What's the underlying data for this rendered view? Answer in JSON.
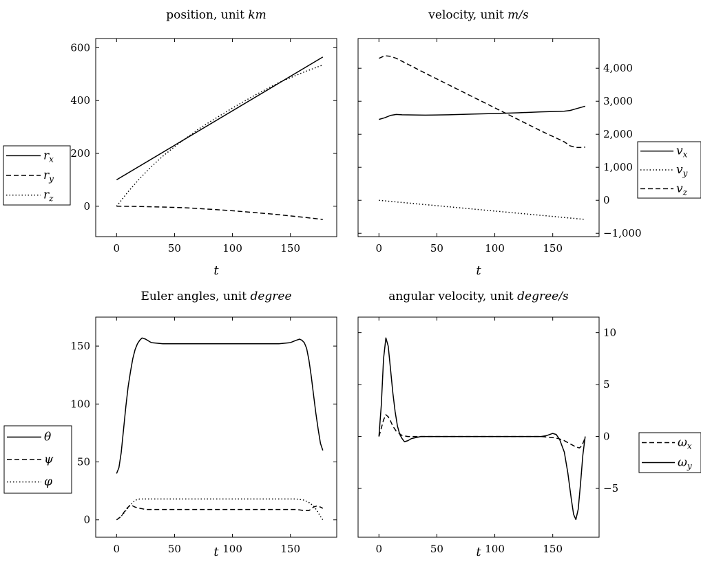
{
  "figure": {
    "xlabel": "t",
    "x_tick_labels": [
      "0",
      "50",
      "100",
      "150"
    ]
  },
  "chart_data": [
    {
      "type": "line",
      "title": "position, unit km",
      "title_parts": {
        "text": "position, unit ",
        "unit": "km"
      },
      "xlabel": "t",
      "xlim": [
        -18,
        190
      ],
      "ylim": [
        -115,
        635
      ],
      "x_ticks": [
        0,
        50,
        100,
        150
      ],
      "y_ticks": [
        0,
        200,
        400,
        600
      ],
      "y_tick_labels": [
        "0",
        "200",
        "400",
        "600"
      ],
      "y_axis_side": "left",
      "legend_placement": "left, outside",
      "series": [
        {
          "name": "r_x",
          "label_main": "r",
          "label_sub": "x",
          "style": "solid",
          "x": [
            0,
            178
          ],
          "y": [
            100,
            565
          ]
        },
        {
          "name": "r_y",
          "label_main": "r",
          "label_sub": "y",
          "style": "dashed",
          "x": [
            0,
            20,
            40,
            60,
            80,
            100,
            120,
            140,
            160,
            178
          ],
          "y": [
            0,
            -1,
            -3,
            -6,
            -11,
            -17,
            -24,
            -32,
            -41,
            -50
          ]
        },
        {
          "name": "r_z",
          "label_main": "r",
          "label_sub": "z",
          "style": "dotted",
          "x": [
            0,
            10,
            20,
            30,
            40,
            50,
            60,
            70,
            80,
            100,
            120,
            140,
            160,
            178
          ],
          "y": [
            0,
            55,
            105,
            150,
            190,
            225,
            258,
            290,
            318,
            372,
            422,
            468,
            505,
            535
          ]
        }
      ]
    },
    {
      "type": "line",
      "title": "velocity, unit m/s",
      "title_parts": {
        "text": "velocity, unit ",
        "unit": "m/s"
      },
      "xlabel": "t",
      "xlim": [
        -18,
        190
      ],
      "ylim": [
        -1100,
        4900
      ],
      "x_ticks": [
        0,
        50,
        100,
        150
      ],
      "y_ticks": [
        -1000,
        0,
        1000,
        2000,
        3000,
        4000
      ],
      "y_tick_labels": [
        "−1,000",
        "0",
        "1,000",
        "2,000",
        "3,000",
        "4,000"
      ],
      "y_axis_side": "right",
      "legend_placement": "right, outside",
      "series": [
        {
          "name": "v_x",
          "label_main": "v",
          "label_sub": "x",
          "style": "solid",
          "x": [
            0,
            5,
            10,
            15,
            20,
            40,
            60,
            80,
            100,
            120,
            140,
            160,
            165,
            170,
            175,
            178
          ],
          "y": [
            2450,
            2500,
            2570,
            2600,
            2590,
            2580,
            2590,
            2610,
            2630,
            2650,
            2680,
            2700,
            2720,
            2770,
            2820,
            2850
          ]
        },
        {
          "name": "v_y",
          "label_main": "v",
          "label_sub": "y",
          "style": "dotted",
          "x": [
            0,
            178
          ],
          "y": [
            0,
            -580
          ]
        },
        {
          "name": "v_z",
          "label_main": "v",
          "label_sub": "z",
          "style": "dashed",
          "x": [
            0,
            5,
            10,
            15,
            20,
            40,
            60,
            80,
            100,
            120,
            140,
            160,
            165,
            170,
            175,
            178
          ],
          "y": [
            4300,
            4380,
            4360,
            4300,
            4210,
            3850,
            3500,
            3150,
            2800,
            2450,
            2100,
            1770,
            1650,
            1600,
            1600,
            1610
          ]
        }
      ]
    },
    {
      "type": "line",
      "title": "Euler angles, unit degree",
      "title_parts": {
        "text": "Euler angles, unit ",
        "unit": "degree"
      },
      "xlabel": "t",
      "xlim": [
        -18,
        190
      ],
      "ylim": [
        -15,
        175
      ],
      "x_ticks": [
        0,
        50,
        100,
        150
      ],
      "y_ticks": [
        0,
        50,
        100,
        150
      ],
      "y_tick_labels": [
        "0",
        "50",
        "100",
        "150"
      ],
      "y_axis_side": "left",
      "legend_placement": "left, outside",
      "series": [
        {
          "name": "θ",
          "label_main": "θ",
          "label_sub": "",
          "style": "solid",
          "x": [
            0,
            2,
            4,
            6,
            8,
            10,
            12,
            14,
            16,
            18,
            20,
            22,
            25,
            30,
            40,
            60,
            80,
            100,
            120,
            140,
            150,
            155,
            158,
            160,
            162,
            164,
            166,
            168,
            170,
            172,
            174,
            176,
            178
          ],
          "y": [
            40,
            45,
            58,
            78,
            98,
            115,
            128,
            139,
            147,
            152,
            155,
            157,
            156,
            153,
            152,
            152,
            152,
            152,
            152,
            152,
            153,
            155,
            156,
            155,
            153,
            148,
            138,
            124,
            108,
            92,
            78,
            66,
            60
          ]
        },
        {
          "name": "ψ",
          "label_main": "ψ",
          "label_sub": "",
          "style": "dashed",
          "x": [
            0,
            4,
            8,
            12,
            16,
            20,
            25,
            30,
            60,
            100,
            140,
            155,
            162,
            166,
            170,
            173,
            176,
            178
          ],
          "y": [
            0,
            3,
            9,
            13,
            11,
            10,
            9,
            9,
            9,
            9,
            9,
            9,
            8,
            8,
            11,
            12,
            11,
            10
          ]
        },
        {
          "name": "φ",
          "label_main": "φ",
          "label_sub": "",
          "style": "dotted",
          "x": [
            0,
            4,
            8,
            12,
            16,
            20,
            25,
            30,
            60,
            100,
            140,
            155,
            162,
            166,
            170,
            173,
            176,
            178
          ],
          "y": [
            0,
            3,
            8,
            13,
            17,
            18,
            18,
            18,
            18,
            18,
            18,
            18,
            17,
            15,
            12,
            8,
            3,
            0
          ]
        }
      ]
    },
    {
      "type": "line",
      "title": "angular velocity, unit degree/s",
      "title_parts": {
        "text": "angular velocity, unit ",
        "unit": "degree/s"
      },
      "xlabel": "t",
      "xlim": [
        -18,
        190
      ],
      "ylim": [
        -9.7,
        11.5
      ],
      "x_ticks": [
        0,
        50,
        100,
        150
      ],
      "y_ticks": [
        -5,
        0,
        5,
        10
      ],
      "y_tick_labels": [
        "−5",
        "0",
        "5",
        "10"
      ],
      "y_axis_side": "right",
      "legend_placement": "right, outside",
      "series": [
        {
          "name": "ω_x",
          "label_main": "ω",
          "label_sub": "x",
          "style": "dashed",
          "x": [
            0,
            2,
            4,
            6,
            8,
            10,
            12,
            15,
            20,
            25,
            30,
            40,
            60,
            100,
            140,
            150,
            155,
            160,
            165,
            170,
            173,
            175,
            177,
            178
          ],
          "y": [
            0,
            0.8,
            1.6,
            2.1,
            1.9,
            1.5,
            1.0,
            0.5,
            0.1,
            0,
            0,
            0,
            0,
            0,
            0,
            -0.1,
            -0.2,
            -0.4,
            -0.7,
            -1.0,
            -1.1,
            -0.9,
            -0.4,
            0
          ]
        },
        {
          "name": "ω_y",
          "label_main": "ω",
          "label_sub": "y",
          "style": "solid",
          "x": [
            0,
            2,
            4,
            6,
            8,
            10,
            12,
            14,
            16,
            18,
            20,
            22,
            25,
            28,
            32,
            36,
            40,
            50,
            80,
            100,
            120,
            140,
            145,
            150,
            153,
            156,
            160,
            163,
            166,
            168,
            170,
            172,
            174,
            176,
            178
          ],
          "y": [
            0,
            3,
            7.5,
            9.5,
            8.7,
            6.5,
            4.2,
            2.4,
            1.0,
            0.2,
            -0.2,
            -0.5,
            -0.4,
            -0.2,
            -0.1,
            0,
            0,
            0,
            0,
            0,
            0,
            0,
            0.1,
            0.3,
            0.2,
            -0.3,
            -1.5,
            -3.5,
            -6.0,
            -7.5,
            -8.0,
            -7.0,
            -4.5,
            -1.8,
            0
          ]
        }
      ]
    }
  ]
}
